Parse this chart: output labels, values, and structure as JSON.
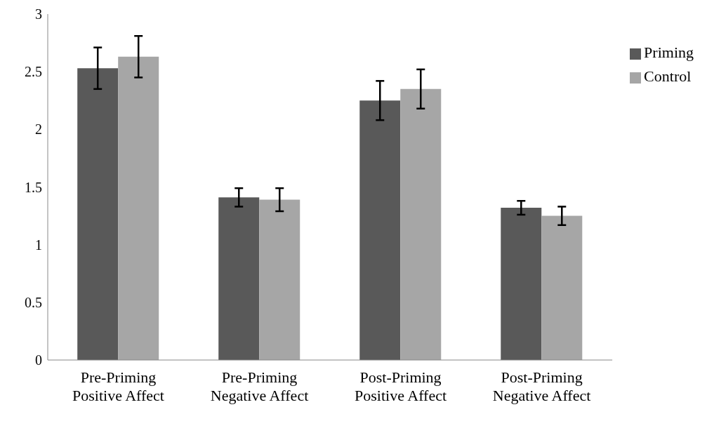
{
  "chart_data": {
    "type": "bar",
    "categories": [
      "Pre-Priming Positive Affect",
      "Pre-Priming Negative Affect",
      "Post-Priming Positive Affect",
      "Post-Priming Negative Affect"
    ],
    "series": [
      {
        "name": "Priming",
        "color": "#595959",
        "values": [
          2.53,
          1.41,
          2.25,
          1.32
        ],
        "errors": [
          0.18,
          0.08,
          0.17,
          0.06
        ]
      },
      {
        "name": "Control",
        "color": "#a6a6a6",
        "values": [
          2.63,
          1.39,
          2.35,
          1.25
        ],
        "errors": [
          0.18,
          0.1,
          0.17,
          0.08
        ]
      }
    ],
    "ylim": [
      0,
      3
    ],
    "yticks": [
      0,
      0.5,
      1,
      1.5,
      2,
      2.5,
      3
    ],
    "grid": false,
    "legend": "top right"
  }
}
